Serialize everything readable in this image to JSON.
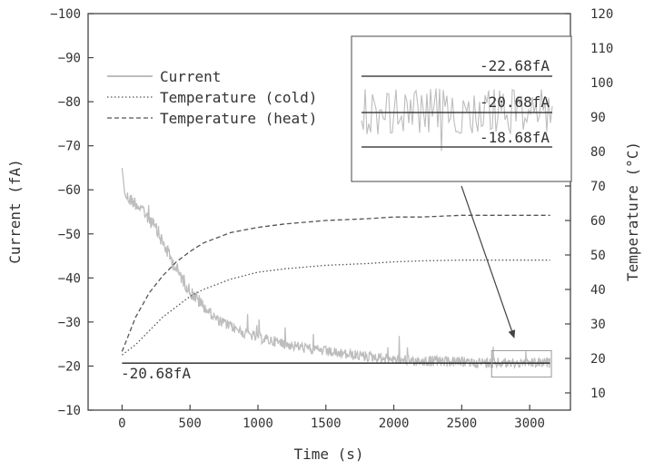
{
  "chart_data": {
    "type": "line",
    "xlabel": "Time (s)",
    "ylabel_left": "Current (fA)",
    "ylabel_right": "Temperature (°C)",
    "xlim": [
      -250,
      3300
    ],
    "x_ticks": [
      0,
      500,
      1000,
      1500,
      2000,
      2500,
      3000
    ],
    "ylim_left": [
      -10,
      -100
    ],
    "y_ticks_left": [
      -100,
      -90,
      -80,
      -70,
      -60,
      -50,
      -40,
      -30,
      -20,
      -10
    ],
    "ylim_right": [
      5,
      120
    ],
    "y_ticks_right": [
      10,
      20,
      30,
      40,
      50,
      60,
      70,
      80,
      90,
      100,
      110,
      120
    ],
    "legend_position": "top-left",
    "series": [
      {
        "name": "Current",
        "axis": "left",
        "style": "solid",
        "color": "#bdbdbd",
        "x": [
          0,
          20,
          50,
          100,
          150,
          200,
          250,
          300,
          350,
          400,
          450,
          500,
          600,
          700,
          800,
          900,
          1000,
          1200,
          1400,
          1600,
          1800,
          2000,
          2200,
          2400,
          2600,
          2800,
          3000,
          3150
        ],
        "y": [
          -65,
          -59,
          -58,
          -57,
          -55.5,
          -53.5,
          -51,
          -48,
          -45,
          -42,
          -39.5,
          -37,
          -33.5,
          -30.5,
          -29,
          -27.5,
          -26.5,
          -25,
          -23.8,
          -22.8,
          -22.2,
          -21.6,
          -21.2,
          -21.0,
          -20.8,
          -20.7,
          -20.7,
          -20.7
        ]
      },
      {
        "name": "Temperature (cold)",
        "axis": "right",
        "style": "dotted",
        "color": "#555555",
        "x": [
          0,
          100,
          200,
          300,
          400,
          500,
          600,
          800,
          1000,
          1200,
          1500,
          1800,
          2000,
          2200,
          2500,
          2800,
          3150
        ],
        "y": [
          21,
          24,
          28,
          32,
          35,
          38,
          40,
          43,
          45,
          46,
          47,
          47.5,
          48,
          48.3,
          48.5,
          48.5,
          48.5
        ]
      },
      {
        "name": "Temperature (heat)",
        "axis": "right",
        "style": "dashed",
        "color": "#555555",
        "x": [
          0,
          50,
          100,
          200,
          300,
          400,
          500,
          600,
          700,
          800,
          1000,
          1200,
          1500,
          1800,
          2000,
          2200,
          2500,
          2800,
          3150
        ],
        "y": [
          22,
          27,
          32,
          39,
          44,
          48,
          51,
          53.5,
          55,
          56.5,
          58,
          59,
          60,
          60.5,
          61,
          61,
          61.5,
          61.5,
          61.5
        ]
      }
    ],
    "reference_line": {
      "value": -20.68,
      "label": "-20.68fA",
      "x_start": 0,
      "x_end": 3150
    },
    "inset": {
      "lines": [
        {
          "value": -22.68,
          "label": "-22.68fA"
        },
        {
          "value": -20.68,
          "label": "-20.68fA"
        },
        {
          "value": -18.68,
          "label": "-18.68fA"
        }
      ]
    },
    "zoom_region": {
      "x_start": 2720,
      "x_end": 3160,
      "y_start": -17.5,
      "y_end": -23.5
    }
  }
}
